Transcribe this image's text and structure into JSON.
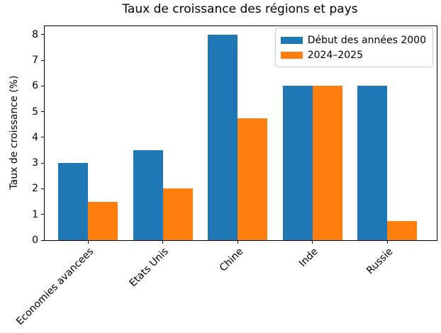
{
  "chart_data": {
    "type": "bar",
    "title": "Taux de croissance des régions et pays",
    "xlabel": "",
    "ylabel": "Taux de croissance (%)",
    "categories": [
      "Economies avancees",
      "Etats Unis",
      "Chine",
      "Inde",
      "Russie"
    ],
    "series": [
      {
        "name": "Début des années 2000",
        "color": "#1f77b4",
        "values": [
          3,
          3.5,
          8,
          6,
          6
        ]
      },
      {
        "name": "2024–2025",
        "color": "#ff7f0e",
        "values": [
          1.5,
          2,
          4.75,
          6,
          0.75
        ]
      }
    ],
    "yticks": [
      0,
      1,
      2,
      3,
      4,
      5,
      6,
      7,
      8
    ],
    "ylim": [
      0,
      8.33
    ],
    "bar_width": 0.4,
    "grid": false,
    "legend_position": "upper right",
    "xtick_rotation": 45
  }
}
